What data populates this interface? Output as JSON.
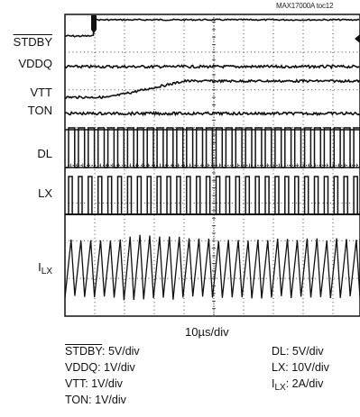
{
  "figure_id": "MAX17000A toc12",
  "chart_data": {
    "type": "line",
    "title": "",
    "xlabel": "10µs/div",
    "x_divisions": 10,
    "y_divisions": 8,
    "grid": true,
    "channels": [
      {
        "label": "STDBY",
        "overline": true,
        "scale": "5V/div"
      },
      {
        "label": "VDDQ",
        "scale": "1V/div"
      },
      {
        "label": "VTT",
        "scale": "1V/div"
      },
      {
        "label": "TON",
        "scale": "1V/div"
      },
      {
        "label": "DL",
        "scale": "5V/div"
      },
      {
        "label": "LX",
        "scale": "10V/div"
      },
      {
        "label": "I",
        "subscript": "LX",
        "scale": "2A/div"
      }
    ]
  },
  "scale_text": {
    "stdby": "STDBY",
    "stdby_scale": ": 5V/div",
    "vddq": "VDDQ: 1V/div",
    "vtt": "VTT: 1V/div",
    "ton": "TON: 1V/div",
    "dl": "DL: 5V/div",
    "lx": "LX: 10V/div",
    "ilx_main": "I",
    "ilx_sub": "LX",
    "ilx_scale": ": 2A/div"
  }
}
